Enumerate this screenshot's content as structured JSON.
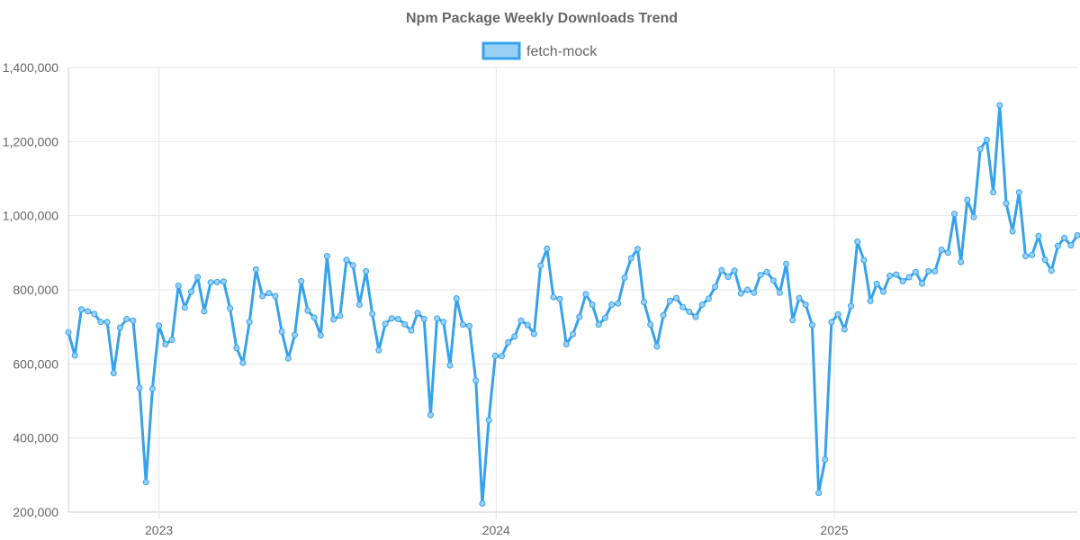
{
  "chart_data": {
    "type": "line",
    "title": "Npm Package Weekly Downloads Trend",
    "xlabel": "",
    "ylabel": "",
    "ylim": [
      200000,
      1400000
    ],
    "yticks": [
      "200,000",
      "400,000",
      "600,000",
      "800,000",
      "1,000,000",
      "1,200,000",
      "1,400,000"
    ],
    "xticks": [
      {
        "label": "2023",
        "date": "2023-01-01"
      },
      {
        "label": "2024",
        "date": "2024-01-01"
      },
      {
        "label": "2025",
        "date": "2025-01-01"
      }
    ],
    "x_start": "2022-09-25",
    "x_end": "2025-09-21",
    "grid": true,
    "legend_position": "top-center",
    "series": [
      {
        "name": "fetch-mock",
        "color": "#36a2eb",
        "fill": "#9ad0f5",
        "x": [
          "2022-09-25",
          "2022-10-02",
          "2022-10-09",
          "2022-10-16",
          "2022-10-23",
          "2022-10-30",
          "2022-11-06",
          "2022-11-13",
          "2022-11-20",
          "2022-11-27",
          "2022-12-04",
          "2022-12-11",
          "2022-12-18",
          "2022-12-25",
          "2023-01-01",
          "2023-01-08",
          "2023-01-15",
          "2023-01-22",
          "2023-01-29",
          "2023-02-05",
          "2023-02-12",
          "2023-02-19",
          "2023-02-26",
          "2023-03-05",
          "2023-03-12",
          "2023-03-19",
          "2023-03-26",
          "2023-04-02",
          "2023-04-09",
          "2023-04-16",
          "2023-04-23",
          "2023-04-30",
          "2023-05-07",
          "2023-05-14",
          "2023-05-21",
          "2023-05-28",
          "2023-06-04",
          "2023-06-11",
          "2023-06-18",
          "2023-06-25",
          "2023-07-02",
          "2023-07-09",
          "2023-07-16",
          "2023-07-23",
          "2023-07-30",
          "2023-08-06",
          "2023-08-13",
          "2023-08-20",
          "2023-08-27",
          "2023-09-03",
          "2023-09-10",
          "2023-09-17",
          "2023-09-24",
          "2023-10-01",
          "2023-10-08",
          "2023-10-15",
          "2023-10-22",
          "2023-10-29",
          "2023-11-05",
          "2023-11-12",
          "2023-11-19",
          "2023-11-26",
          "2023-12-03",
          "2023-12-10",
          "2023-12-17",
          "2023-12-24",
          "2023-12-31",
          "2024-01-07",
          "2024-01-14",
          "2024-01-21",
          "2024-01-28",
          "2024-02-04",
          "2024-02-11",
          "2024-02-18",
          "2024-02-25",
          "2024-03-03",
          "2024-03-10",
          "2024-03-17",
          "2024-03-24",
          "2024-03-31",
          "2024-04-07",
          "2024-04-14",
          "2024-04-21",
          "2024-04-28",
          "2024-05-05",
          "2024-05-12",
          "2024-05-19",
          "2024-05-26",
          "2024-06-02",
          "2024-06-09",
          "2024-06-16",
          "2024-06-23",
          "2024-06-30",
          "2024-07-07",
          "2024-07-14",
          "2024-07-21",
          "2024-07-28",
          "2024-08-04",
          "2024-08-11",
          "2024-08-18",
          "2024-08-25",
          "2024-09-01",
          "2024-09-08",
          "2024-09-15",
          "2024-09-22",
          "2024-09-29",
          "2024-10-06",
          "2024-10-13",
          "2024-10-20",
          "2024-10-27",
          "2024-11-03",
          "2024-11-10",
          "2024-11-17",
          "2024-11-24",
          "2024-12-01",
          "2024-12-08",
          "2024-12-15",
          "2024-12-22",
          "2024-12-29",
          "2025-01-05",
          "2025-01-12",
          "2025-01-19",
          "2025-01-26",
          "2025-02-02",
          "2025-02-09",
          "2025-02-16",
          "2025-02-23",
          "2025-03-02",
          "2025-03-09",
          "2025-03-16",
          "2025-03-23",
          "2025-03-30",
          "2025-04-06",
          "2025-04-13",
          "2025-04-20",
          "2025-04-27",
          "2025-05-04",
          "2025-05-11",
          "2025-05-18",
          "2025-05-25",
          "2025-06-01",
          "2025-06-08",
          "2025-06-15",
          "2025-06-22",
          "2025-06-29",
          "2025-07-06",
          "2025-07-13",
          "2025-07-20",
          "2025-07-27",
          "2025-08-03",
          "2025-08-10",
          "2025-08-17",
          "2025-08-24",
          "2025-08-31",
          "2025-09-07",
          "2025-09-14",
          "2025-09-21"
        ],
        "values": [
          685000,
          623000,
          747000,
          742000,
          735000,
          713000,
          713000,
          575000,
          698000,
          721000,
          717000,
          535000,
          281000,
          533000,
          703000,
          653000,
          665000,
          811000,
          752000,
          795000,
          834000,
          742000,
          820000,
          821000,
          822000,
          750000,
          643000,
          603000,
          713000,
          855000,
          783000,
          791000,
          783000,
          687000,
          615000,
          678000,
          823000,
          744000,
          725000,
          677000,
          891000,
          720000,
          730000,
          881000,
          866000,
          760000,
          850000,
          735000,
          637000,
          708000,
          723000,
          721000,
          707000,
          690000,
          737000,
          721000,
          462000,
          723000,
          713000,
          596000,
          777000,
          706000,
          702000,
          555000,
          223000,
          448000,
          622000,
          621000,
          658000,
          674000,
          717000,
          705000,
          681000,
          865000,
          911000,
          780000,
          775000,
          653000,
          680000,
          727000,
          788000,
          760000,
          706000,
          724000,
          760000,
          763000,
          833000,
          885000,
          910000,
          767000,
          706000,
          647000,
          731000,
          770000,
          778000,
          753000,
          741000,
          727000,
          760000,
          776000,
          808000,
          853000,
          835000,
          852000,
          790000,
          800000,
          792000,
          840000,
          848000,
          825000,
          792000,
          870000,
          718000,
          778000,
          760000,
          705000,
          252000,
          342000,
          713000,
          734000,
          693000,
          756000,
          930000,
          880000,
          770000,
          816000,
          795000,
          838000,
          841000,
          823000,
          834000,
          848000,
          817000,
          850000,
          850000,
          908000,
          900000,
          1005000,
          875000,
          1043000,
          996000,
          1180000,
          1205000,
          1063000,
          1298000,
          1033000,
          958000,
          1063000,
          891000,
          894000,
          945000,
          881000,
          852000,
          918000,
          940000,
          920000,
          947000
        ]
      }
    ]
  }
}
